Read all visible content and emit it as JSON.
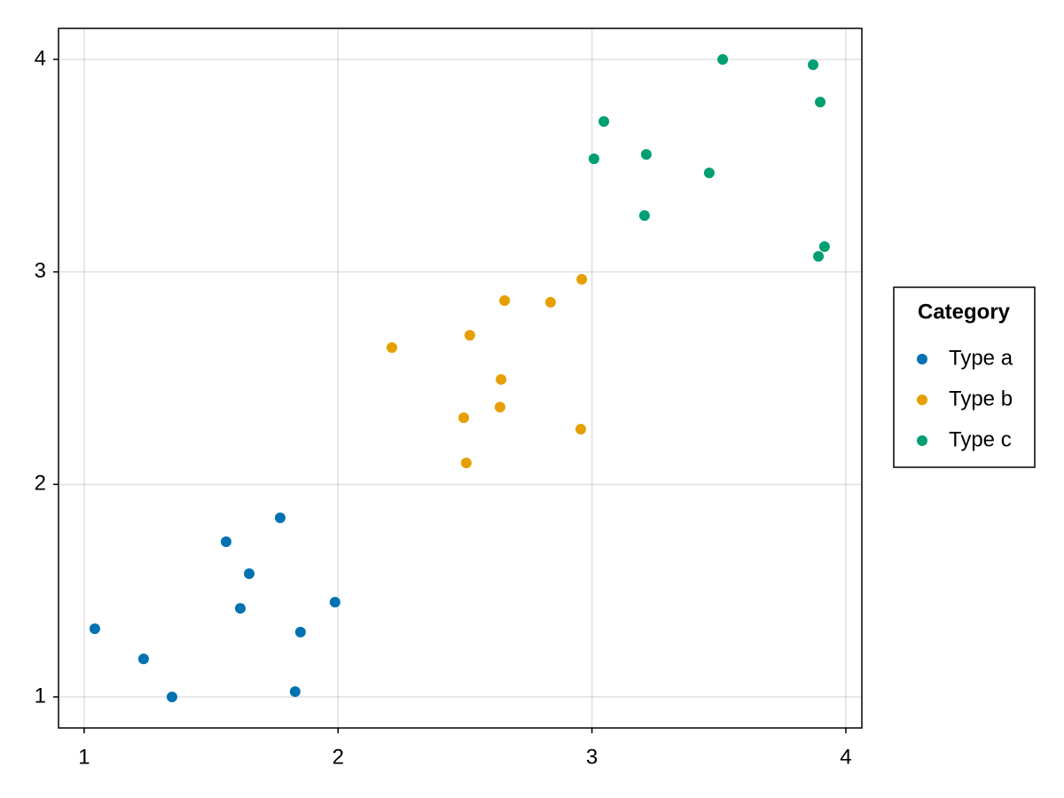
{
  "chart_data": {
    "type": "scatter",
    "legend_title": "Category",
    "legend_position": "right",
    "grid": true,
    "xlim": [
      0.899,
      4.063
    ],
    "ylim": [
      0.854,
      4.146
    ],
    "xticks": [
      1,
      2,
      3,
      4
    ],
    "yticks": [
      1,
      2,
      3,
      4
    ],
    "series": [
      {
        "name": "Type a",
        "color": "#0072b2",
        "x": [
          1.042,
          1.234,
          1.346,
          1.559,
          1.65,
          1.615,
          1.772,
          1.852,
          1.831,
          1.988
        ],
        "values": [
          1.321,
          1.179,
          1.0,
          1.73,
          1.58,
          1.417,
          1.843,
          1.305,
          1.025,
          1.446
        ]
      },
      {
        "name": "Type b",
        "color": "#e69f00",
        "x": [
          2.212,
          2.519,
          2.656,
          2.837,
          2.96,
          2.642,
          2.638,
          2.495,
          2.956,
          2.505
        ],
        "values": [
          2.644,
          2.702,
          2.865,
          2.857,
          2.965,
          2.494,
          2.364,
          2.314,
          2.26,
          2.101
        ]
      },
      {
        "name": "Type c",
        "color": "#009e73",
        "x": [
          3.515,
          3.871,
          3.899,
          3.047,
          3.008,
          3.214,
          3.462,
          3.207,
          3.916,
          3.892
        ],
        "values": [
          4.0,
          3.975,
          3.799,
          3.708,
          3.532,
          3.553,
          3.466,
          3.265,
          3.119,
          3.073
        ]
      }
    ]
  }
}
